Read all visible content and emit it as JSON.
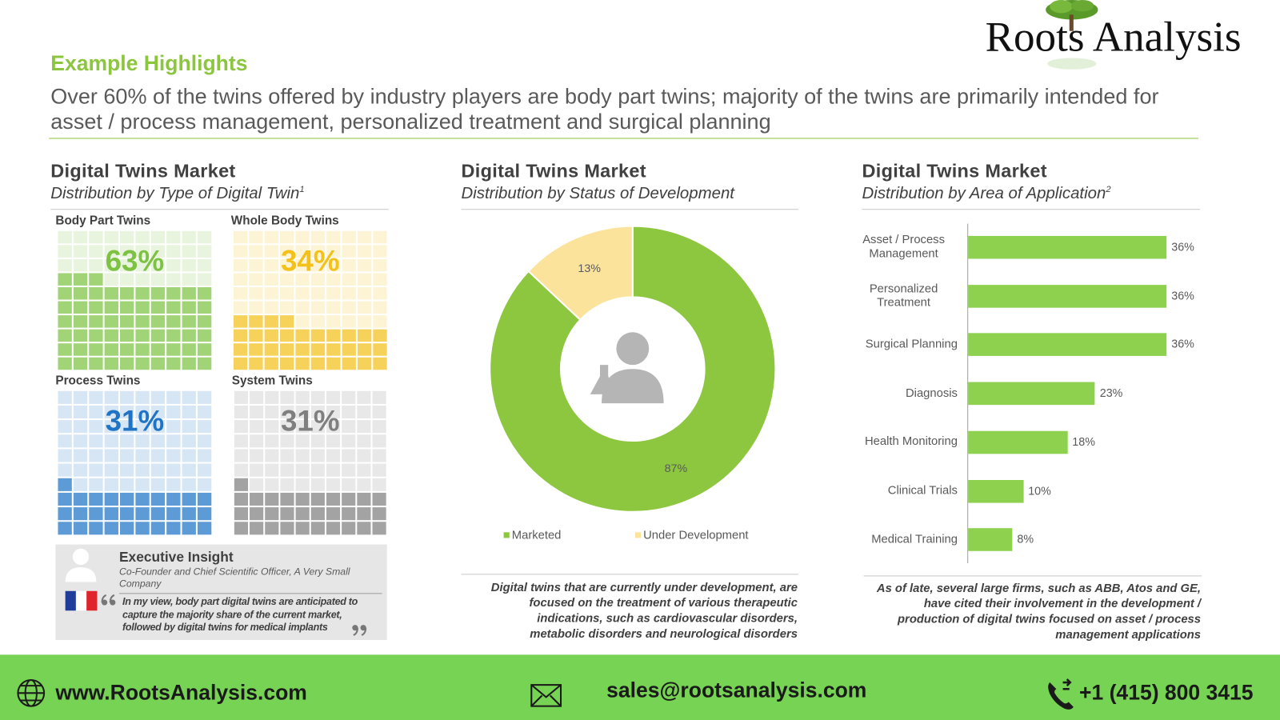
{
  "logo": "Roots Analysis",
  "header": {
    "title": "Example Highlights",
    "subtitle": "Over 60% of the twins offered by industry players are body part twins; majority of the twins are primarily intended for asset / process management, personalized treatment and surgical planning"
  },
  "chart_data": [
    {
      "type": "waffle",
      "title": "Digital Twins Market",
      "subtitle": "Distribution by Type of Digital Twin",
      "footnote_mark": "1",
      "categories": [
        "Body Part Twins",
        "Whole Body Twins",
        "Process Twins",
        "System Twins"
      ],
      "values": [
        63,
        34,
        31,
        31
      ],
      "value_labels": [
        "63%",
        "34%",
        "31%",
        "31%"
      ],
      "colors": [
        "#7dc242",
        "#f4c01a",
        "#1f74c6",
        "#7f7f7f"
      ]
    },
    {
      "type": "donut",
      "title": "Digital Twins Market",
      "subtitle": "Distribution by Status of Development",
      "categories": [
        "Marketed",
        "Under Development"
      ],
      "values": [
        87,
        13
      ],
      "value_labels": [
        "87%",
        "13%"
      ],
      "colors": [
        "#8dc63f",
        "#fbe39c"
      ],
      "note": "Digital twins that are currently under development, are focused on the treatment of various therapeutic indications, such as cardiovascular disorders, metabolic disorders and neurological disorders"
    },
    {
      "type": "hbar",
      "title": "Digital Twins Market",
      "subtitle": "Distribution by Area of Application",
      "footnote_mark": "2",
      "categories": [
        "Asset / Process Management",
        "Personalized Treatment",
        "Surgical Planning",
        "Diagnosis",
        "Health Monitoring",
        "Clinical Trials",
        "Medical Training"
      ],
      "values": [
        36,
        36,
        36,
        23,
        18,
        10,
        8
      ],
      "value_labels": [
        "36%",
        "36%",
        "36%",
        "23%",
        "18%",
        "10%",
        "8%"
      ],
      "color": "#8dd14f",
      "note": "As of late, several large firms, such as ABB, Atos and GE, have cited their involvement in the development / production of digital twins focused on asset / process management applications"
    }
  ],
  "insight": {
    "title": "Executive Insight",
    "role": "Co-Founder and Chief Scientific Officer, A Very Small Company",
    "quote": "In my view, body part digital twins are anticipated to capture the majority share of the current market, followed by digital twins for medical implants"
  },
  "footer": {
    "website": "www.RootsAnalysis.com",
    "email": "sales@rootsanalysis.com",
    "phone": "+1 (415) 800 3415"
  }
}
